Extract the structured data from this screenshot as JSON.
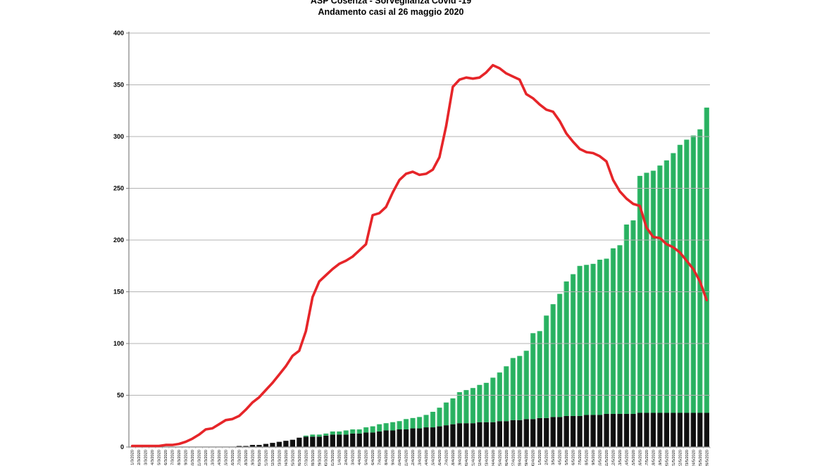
{
  "title": {
    "line1": "ASP Cosenza - Sorveglianza Covid -19",
    "line2": "Andamento casi al  26 maggio 2020"
  },
  "colors": {
    "bar_black": "#111111",
    "bar_green": "#28b160",
    "bar_green_light": "#6fd39b",
    "line_red": "#e62529",
    "gridline": "#b3b3b3",
    "axis": "#808080"
  },
  "chart_data": {
    "type": "bar",
    "subtype": "stacked-bars-with-line",
    "title": "ASP Cosenza - Sorveglianza Covid -19 — Andamento casi al 26 maggio 2020",
    "xlabel": "",
    "ylabel": "",
    "ylim": [
      0,
      400
    ],
    "ytick_step": 50,
    "yticks": [
      0,
      50,
      100,
      150,
      200,
      250,
      300,
      350,
      400
    ],
    "grid": true,
    "legend_position": "none",
    "categories": [
      "1/3/2020",
      "2/3/2020",
      "3/3/2020",
      "4/3/2020",
      "5/3/2020",
      "6/3/2020",
      "7/3/2020",
      "8/3/2020",
      "9/3/2020",
      "10/3/2020",
      "11/3/2020",
      "12/3/2020",
      "13/3/2020",
      "14/3/2020",
      "15/3/2020",
      "16/3/2020",
      "17/3/2020",
      "18/3/2020",
      "19/3/2020",
      "20/3/2020",
      "21/3/2020",
      "22/3/2020",
      "23/3/2020",
      "24/3/2020",
      "25/3/2020",
      "26/3/2020",
      "27/3/2020",
      "28/3/2020",
      "29/3/2020",
      "30/3/2020",
      "31/3/2020",
      "1/4/2020",
      "2/4/2020",
      "3/4/2020",
      "4/4/2020",
      "5/4/2020",
      "6/4/2020",
      "7/4/2020",
      "8/4/2020",
      "9/4/2020",
      "10/4/2020",
      "11/4/2020",
      "12/4/2020",
      "13/4/2020",
      "14/4/2020",
      "15/4/2020",
      "16/4/2020",
      "17/4/2020",
      "18/4/2020",
      "19/4/2020",
      "20/4/2020",
      "21/4/2020",
      "22/4/2020",
      "23/4/2020",
      "24/4/2020",
      "25/4/2020",
      "26/4/2020",
      "27/4/2020",
      "28/4/2020",
      "29/4/2020",
      "30/4/2020",
      "1/5/2020",
      "2/5/2020",
      "3/5/2020",
      "4/5/2020",
      "5/5/2020",
      "6/5/2020",
      "7/5/2020",
      "8/5/2020",
      "9/5/2020",
      "10/5/2020",
      "11/5/2020",
      "12/5/2020",
      "13/5/2020",
      "14/5/2020",
      "15/5/2020",
      "16/5/2020",
      "17/5/2020",
      "18/5/2020",
      "19/5/2020",
      "20/5/2020",
      "21/5/2020",
      "22/5/2020",
      "23/5/2020",
      "24/5/2020",
      "25/5/2020",
      "26/5/2020"
    ],
    "series": [
      {
        "name": "bars-black-bottom",
        "type": "bar",
        "stack": "cases",
        "color": "#111111",
        "values": [
          0,
          0,
          0,
          0,
          0,
          0,
          0,
          0,
          0,
          0,
          0,
          0,
          0,
          0,
          0,
          0,
          1,
          1,
          2,
          2,
          3,
          4,
          5,
          6,
          7,
          9,
          10,
          10,
          10,
          11,
          12,
          12,
          12,
          13,
          13,
          14,
          14,
          15,
          16,
          16,
          17,
          17,
          18,
          18,
          19,
          19,
          20,
          21,
          22,
          23,
          23,
          23,
          24,
          24,
          24,
          25,
          25,
          26,
          26,
          27,
          27,
          28,
          28,
          29,
          29,
          30,
          30,
          30,
          31,
          31,
          31,
          32,
          32,
          32,
          32,
          32,
          33,
          33,
          33,
          33,
          33,
          33,
          33,
          33,
          33,
          33,
          33
        ]
      },
      {
        "name": "bars-green-top",
        "type": "bar",
        "stack": "cases",
        "color": "#28b160",
        "values": [
          0,
          0,
          0,
          0,
          0,
          0,
          0,
          0,
          0,
          0,
          0,
          0,
          0,
          0,
          0,
          0,
          0,
          0,
          0,
          0,
          0,
          0,
          0,
          0,
          0,
          0,
          1,
          2,
          2,
          2,
          3,
          3,
          4,
          4,
          4,
          5,
          6,
          7,
          7,
          8,
          8,
          10,
          10,
          11,
          12,
          15,
          18,
          22,
          25,
          30,
          32,
          34,
          36,
          38,
          43,
          47,
          53,
          60,
          62,
          66,
          83,
          84,
          99,
          109,
          119,
          130,
          137,
          145,
          145,
          146,
          150,
          150,
          160,
          163,
          183,
          187,
          229,
          232,
          234,
          239,
          244,
          251,
          259,
          264,
          268,
          274,
          295
        ]
      },
      {
        "name": "line-red",
        "type": "line",
        "color": "#e62529",
        "values": [
          1,
          1,
          1,
          1,
          1,
          2,
          2,
          3,
          5,
          8,
          12,
          17,
          18,
          22,
          26,
          27,
          30,
          36,
          43,
          48,
          55,
          62,
          70,
          78,
          88,
          93,
          112,
          145,
          160,
          166,
          172,
          177,
          180,
          184,
          190,
          196,
          224,
          226,
          232,
          246,
          258,
          264,
          266,
          263,
          264,
          268,
          280,
          310,
          348,
          355,
          357,
          356,
          357,
          362,
          369,
          366,
          361,
          358,
          355,
          341,
          337,
          331,
          326,
          324,
          315,
          303,
          295,
          288,
          285,
          284,
          281,
          276,
          258,
          247,
          240,
          235,
          233,
          212,
          203,
          202,
          196,
          193,
          188,
          180,
          172,
          160,
          142
        ]
      }
    ]
  }
}
